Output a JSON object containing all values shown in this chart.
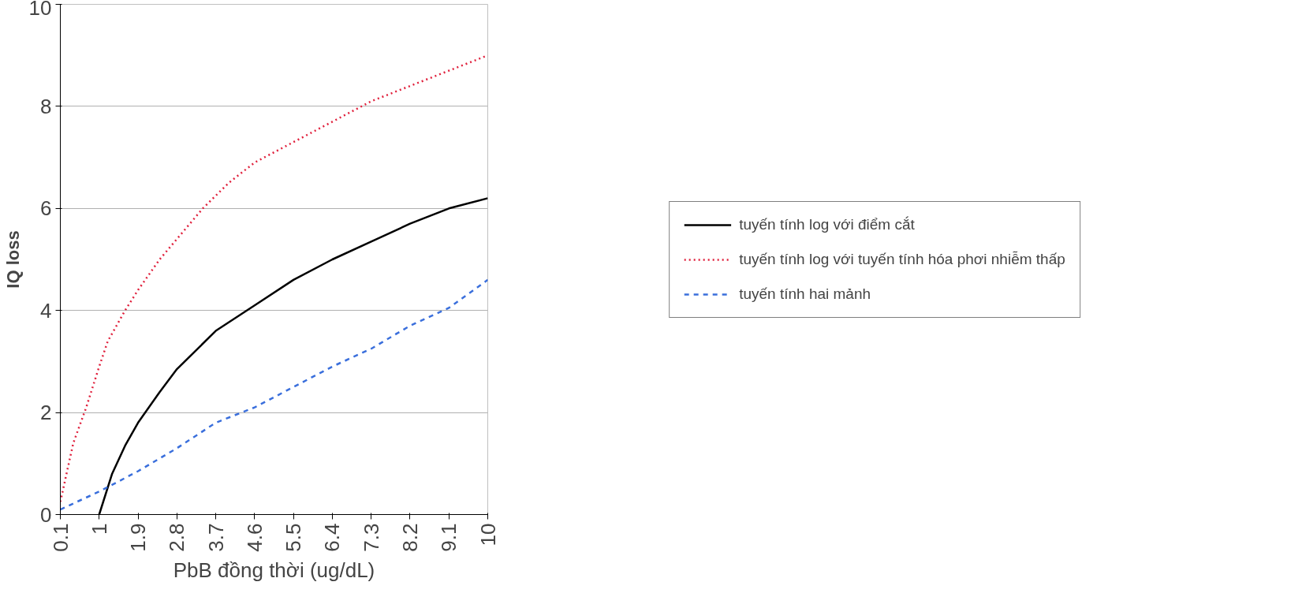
{
  "chart_data": {
    "type": "line",
    "xlabel": "PbB đồng thời (ug/dL)",
    "ylabel": "IQ loss",
    "xlim": [
      0.1,
      10
    ],
    "xticks": [
      0.1,
      1,
      1.9,
      2.8,
      3.7,
      4.6,
      5.5,
      6.4,
      7.3,
      8.2,
      9.1,
      10
    ],
    "ylim": [
      0,
      10
    ],
    "yticks": [
      0,
      2,
      4,
      6,
      8,
      10
    ],
    "grid": "y",
    "legend": "right",
    "marker": "none",
    "series": [
      {
        "name": "tuyến tính log với điểm cắt",
        "color": "#000000",
        "line_style": "solid",
        "x": [
          1.0,
          1.3,
          1.6,
          1.9,
          2.4,
          2.8,
          3.7,
          4.6,
          5.5,
          6.4,
          7.3,
          8.2,
          9.1,
          10
        ],
        "values": [
          0,
          0.8,
          1.35,
          1.8,
          2.4,
          2.85,
          3.6,
          4.1,
          4.6,
          5.0,
          5.35,
          5.7,
          6.0,
          6.2
        ]
      },
      {
        "name": "tuyến tính log với tuyến tính hóa phơi nhiễm thấp",
        "color": "#e0203c",
        "line_style": "dotted",
        "x": [
          0.1,
          0.4,
          0.7,
          1.0,
          1.2,
          1.6,
          1.9,
          2.4,
          2.8,
          3.4,
          4.0,
          4.6,
          5.5,
          6.4,
          7.3,
          8.2,
          9.1,
          10
        ],
        "values": [
          0.25,
          1.4,
          2.1,
          2.9,
          3.4,
          4.0,
          4.4,
          5.0,
          5.4,
          6.0,
          6.5,
          6.9,
          7.3,
          7.7,
          8.1,
          8.4,
          8.7,
          9.0
        ]
      },
      {
        "name": "tuyến tính hai mảnh",
        "color": "#3a6fdc",
        "line_style": "dashed",
        "x": [
          0.1,
          1.0,
          1.9,
          2.8,
          3.7,
          4.6,
          5.5,
          6.4,
          7.3,
          8.2,
          9.1,
          10
        ],
        "values": [
          0.1,
          0.45,
          0.85,
          1.3,
          1.8,
          2.1,
          2.5,
          2.9,
          3.25,
          3.7,
          4.05,
          4.6
        ]
      }
    ]
  }
}
